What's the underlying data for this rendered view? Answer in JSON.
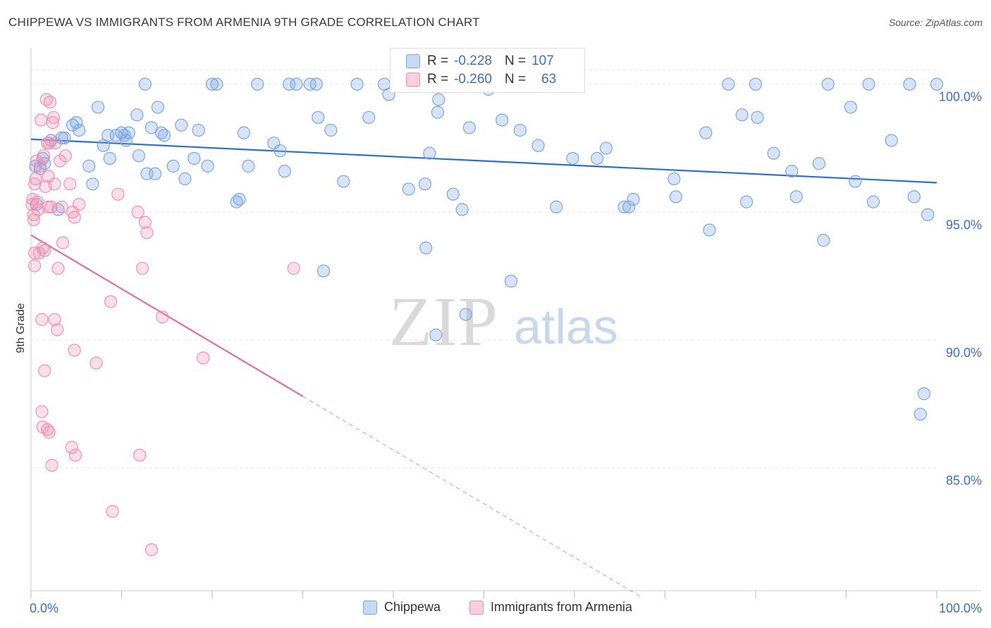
{
  "header": {
    "title": "CHIPPEWA VS IMMIGRANTS FROM ARMENIA 9TH GRADE CORRELATION CHART",
    "source": "Source: ZipAtlas.com"
  },
  "watermark": {
    "zip": "ZIP",
    "atlas": "atlas"
  },
  "legend_box": {
    "rows": [
      {
        "r_label": "R =",
        "r_value": "-0.228",
        "n_label": "N =",
        "n_value": "107"
      },
      {
        "r_label": "R =",
        "r_value": "-0.260",
        "n_label": "N =",
        "n_value": "63"
      }
    ]
  },
  "chart_data": {
    "type": "scatter",
    "xlabel": "",
    "ylabel": "9th Grade",
    "xlim": [
      0,
      100
    ],
    "ylim": [
      80.2,
      101.2
    ],
    "x_tick_labels": [
      {
        "value": 0,
        "label": "0.0%"
      },
      {
        "value": 100,
        "label": "100.0%"
      }
    ],
    "y_tick_labels": [
      {
        "value": 100,
        "label": "100.0%"
      },
      {
        "value": 95,
        "label": "95.0%"
      },
      {
        "value": 90,
        "label": "90.0%"
      },
      {
        "value": 85,
        "label": "85.0%"
      }
    ],
    "grid": true,
    "legend_position": "bottom-center",
    "colors": {
      "chippewa": "#7aa6e0",
      "armenia": "#f08fb0",
      "chippewa_line": "#2f6fcb",
      "armenia_line": "#e06f97"
    },
    "series": [
      {
        "name": "Chippewa",
        "r": -0.228,
        "n": 107,
        "trend": {
          "x0": 0,
          "y0": 97.85,
          "x1": 100,
          "y1": 96.15
        },
        "points": [
          [
            0.5,
            96.8
          ],
          [
            0.6,
            95.3
          ],
          [
            1,
            96.7
          ],
          [
            1.3,
            97.1
          ],
          [
            1.5,
            96.9
          ],
          [
            2.2,
            97.8
          ],
          [
            3,
            95.1
          ],
          [
            3.4,
            97.9
          ],
          [
            3.7,
            97.9
          ],
          [
            4.6,
            98.4
          ],
          [
            5,
            98.5
          ],
          [
            5.3,
            98.2
          ],
          [
            6.4,
            96.8
          ],
          [
            6.8,
            96.1
          ],
          [
            7.4,
            99.1
          ],
          [
            8,
            97.6
          ],
          [
            8.5,
            98
          ],
          [
            8.7,
            97.1
          ],
          [
            9.4,
            98
          ],
          [
            10,
            98.1
          ],
          [
            10.3,
            98
          ],
          [
            10.5,
            97.8
          ],
          [
            10.8,
            98.1
          ],
          [
            11.7,
            98.8
          ],
          [
            11.9,
            97.2
          ],
          [
            12.6,
            100
          ],
          [
            12.8,
            96.5
          ],
          [
            13.3,
            98.3
          ],
          [
            13.7,
            96.5
          ],
          [
            14,
            99.1
          ],
          [
            14.4,
            98.1
          ],
          [
            14.7,
            98
          ],
          [
            15.7,
            96.8
          ],
          [
            16.6,
            98.4
          ],
          [
            17,
            96.3
          ],
          [
            18,
            97.1
          ],
          [
            18.5,
            98.2
          ],
          [
            19.5,
            96.8
          ],
          [
            20,
            100
          ],
          [
            20.5,
            100
          ],
          [
            22.7,
            95.4
          ],
          [
            23,
            95.5
          ],
          [
            23.5,
            98.1
          ],
          [
            24,
            96.8
          ],
          [
            25,
            100
          ],
          [
            26.8,
            97.7
          ],
          [
            27.5,
            97.4
          ],
          [
            28,
            96.6
          ],
          [
            28.5,
            100
          ],
          [
            29.3,
            100
          ],
          [
            30.8,
            100
          ],
          [
            31.5,
            100
          ],
          [
            31.7,
            98.7
          ],
          [
            32.3,
            92.7
          ],
          [
            33.1,
            98.2
          ],
          [
            34.5,
            96.2
          ],
          [
            36,
            100
          ],
          [
            37.3,
            98.7
          ],
          [
            39,
            100
          ],
          [
            39.5,
            99.6
          ],
          [
            41.7,
            95.9
          ],
          [
            42.4,
            100
          ],
          [
            43.5,
            96.1
          ],
          [
            43.6,
            93.6
          ],
          [
            44,
            97.3
          ],
          [
            44.9,
            98.9
          ],
          [
            45,
            99.4
          ],
          [
            46.6,
            95.7
          ],
          [
            47.6,
            95.1
          ],
          [
            48,
            91
          ],
          [
            48.4,
            98.3
          ],
          [
            50.5,
            99.8
          ],
          [
            52,
            98.6
          ],
          [
            53,
            92.3
          ],
          [
            54,
            98.2
          ],
          [
            56,
            97.6
          ],
          [
            58,
            95.2
          ],
          [
            59.8,
            97.1
          ],
          [
            62.5,
            97.1
          ],
          [
            63.5,
            97.5
          ],
          [
            65.5,
            95.2
          ],
          [
            66,
            95.2
          ],
          [
            66.5,
            95.5
          ],
          [
            71,
            96.3
          ],
          [
            71.2,
            95.6
          ],
          [
            74.5,
            98.1
          ],
          [
            74.9,
            94.3
          ],
          [
            77,
            100
          ],
          [
            78.5,
            98.8
          ],
          [
            79,
            95.4
          ],
          [
            80,
            100
          ],
          [
            80.2,
            98.7
          ],
          [
            82,
            97.3
          ],
          [
            84,
            96.6
          ],
          [
            84.5,
            95.6
          ],
          [
            87,
            96.9
          ],
          [
            87.5,
            93.9
          ],
          [
            88,
            100
          ],
          [
            90.5,
            99.1
          ],
          [
            91,
            96.2
          ],
          [
            92.5,
            100
          ],
          [
            93,
            95.4
          ],
          [
            95,
            97.8
          ],
          [
            97,
            100
          ],
          [
            97.5,
            95.6
          ],
          [
            99,
            94.9
          ],
          [
            100,
            100
          ],
          [
            98.6,
            87.9
          ],
          [
            98.2,
            87.1
          ],
          [
            44.7,
            90.2
          ]
        ]
      },
      {
        "name": "Immigrants from Armenia",
        "r": -0.26,
        "n": 63,
        "trend": {
          "x0": 0,
          "y0": 94.1,
          "x1": 30,
          "y1": 87.8,
          "dash_x1": 67.5
        },
        "points": [
          [
            0.2,
            95.5
          ],
          [
            0.3,
            94.7
          ],
          [
            0.4,
            93.4
          ],
          [
            0.5,
            96.3
          ],
          [
            0.6,
            97
          ],
          [
            0.7,
            95.4
          ],
          [
            0.8,
            95.1
          ],
          [
            0.9,
            93.4
          ],
          [
            1,
            96.8
          ],
          [
            1.1,
            98.6
          ],
          [
            1.3,
            93.6
          ],
          [
            1.4,
            97.2
          ],
          [
            1.5,
            93.5
          ],
          [
            1.6,
            96
          ],
          [
            1.7,
            99.4
          ],
          [
            1.8,
            97.7
          ],
          [
            1.9,
            96.4
          ],
          [
            2.1,
            99.3
          ],
          [
            2,
            97.7
          ],
          [
            2.2,
            95.2
          ],
          [
            2.4,
            98.5
          ],
          [
            2.5,
            98.7
          ],
          [
            2.7,
            97.7
          ],
          [
            3,
            92.8
          ],
          [
            3.2,
            97
          ],
          [
            3.5,
            93.8
          ],
          [
            3.8,
            97.2
          ],
          [
            4.3,
            96.1
          ],
          [
            4.6,
            95
          ],
          [
            4.8,
            94.8
          ],
          [
            5.3,
            95.3
          ],
          [
            1.2,
            90.8
          ],
          [
            2.6,
            90.8
          ],
          [
            2.9,
            90.4
          ],
          [
            4.8,
            89.6
          ],
          [
            1.5,
            88.8
          ],
          [
            1.2,
            87.2
          ],
          [
            1.3,
            86.6
          ],
          [
            1.8,
            86.5
          ],
          [
            2,
            86.4
          ],
          [
            2.3,
            85.1
          ],
          [
            4.5,
            85.8
          ],
          [
            4.9,
            85.5
          ],
          [
            7.2,
            89.1
          ],
          [
            8.8,
            91.5
          ],
          [
            9,
            83.3
          ],
          [
            9.6,
            95.7
          ],
          [
            11.8,
            95
          ],
          [
            12,
            85.5
          ],
          [
            12.3,
            92.8
          ],
          [
            12.6,
            94.6
          ],
          [
            12.8,
            94.2
          ],
          [
            13.3,
            81.8
          ],
          [
            14.5,
            90.9
          ],
          [
            19,
            89.3
          ],
          [
            29,
            92.8
          ],
          [
            2.6,
            96.1
          ],
          [
            3.4,
            95.2
          ],
          [
            0.4,
            92.9
          ],
          [
            0.3,
            94.9
          ],
          [
            1.9,
            95.2
          ],
          [
            0.1,
            95.3
          ],
          [
            0.4,
            96.1
          ]
        ]
      }
    ]
  },
  "bottom_legend": {
    "items": [
      "Chippewa",
      "Immigrants from Armenia"
    ]
  }
}
